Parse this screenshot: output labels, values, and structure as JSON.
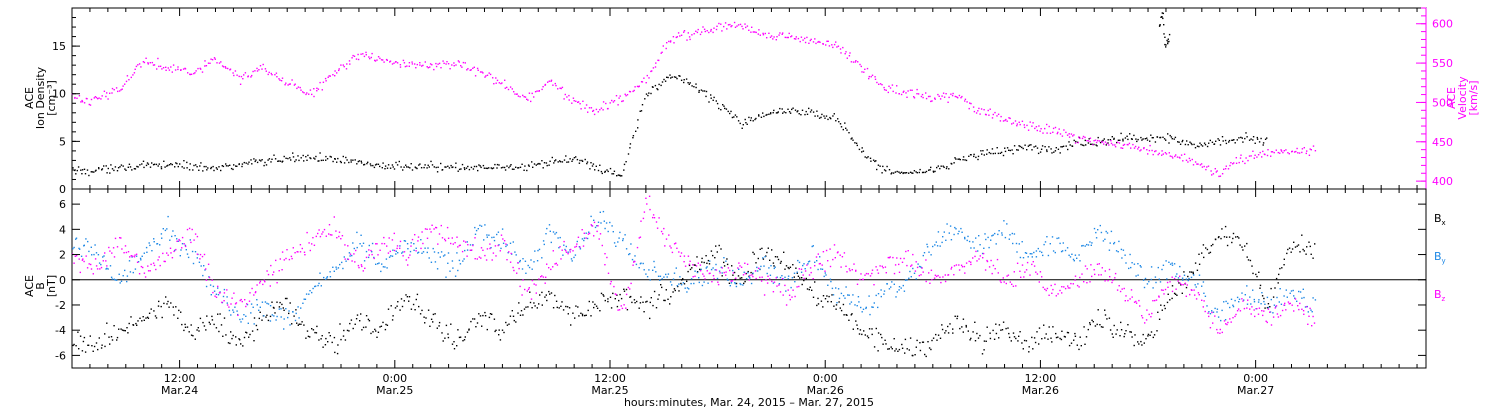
{
  "chart_data": [
    {
      "type": "scatter",
      "panel": "top",
      "ylabel_left_lines": [
        "ACE",
        "Ion Density",
        "[cm⁻³]"
      ],
      "ylabel_right_lines": [
        "ACE",
        "Velocity",
        "[km/s]"
      ],
      "ylim_left": [
        0,
        19
      ],
      "ylim_right": [
        390,
        620
      ],
      "yticks_left": [
        "0",
        "5",
        "10",
        "15"
      ],
      "yticks_right": [
        "400",
        "450",
        "500",
        "550",
        "600"
      ],
      "series": [
        {
          "axis": "left",
          "color": "#000000",
          "points": [
            [
              0,
              2
            ],
            [
              2,
              2
            ],
            [
              4,
              2.4
            ],
            [
              6,
              2.4
            ],
            [
              8,
              2.6
            ],
            [
              10,
              2.5
            ],
            [
              12,
              2.3
            ],
            [
              14,
              2.6
            ],
            [
              16,
              3
            ],
            [
              18,
              3.2
            ],
            [
              20,
              3.5
            ],
            [
              22,
              3
            ],
            [
              24,
              2.9
            ],
            [
              26,
              2.4
            ],
            [
              28,
              2.4
            ],
            [
              30,
              2.5
            ],
            [
              32,
              2.2
            ],
            [
              34,
              2.3
            ],
            [
              36,
              2.4
            ],
            [
              38,
              2.3
            ],
            [
              40,
              2.8
            ],
            [
              42,
              3.4
            ],
            [
              44,
              2.2
            ],
            [
              46,
              1.5
            ],
            [
              48,
              10
            ],
            [
              50,
              12
            ],
            [
              52,
              11
            ],
            [
              54,
              9
            ],
            [
              56,
              7
            ],
            [
              58,
              8
            ],
            [
              60,
              8.5
            ],
            [
              62,
              8
            ],
            [
              64,
              7.5
            ],
            [
              66,
              4
            ],
            [
              68,
              2
            ],
            [
              70,
              1.7
            ],
            [
              72,
              2
            ],
            [
              74,
              3
            ],
            [
              76,
              3.8
            ],
            [
              78,
              4
            ],
            [
              80,
              4.5
            ],
            [
              82,
              4
            ],
            [
              84,
              5
            ],
            [
              86,
              5
            ],
            [
              88,
              5.5
            ],
            [
              90,
              5.2
            ],
            [
              92,
              5.5
            ],
            [
              94,
              4.5
            ],
            [
              96,
              5
            ],
            [
              98,
              5.5
            ],
            [
              100,
              5
            ]
          ]
        },
        {
          "axis": "left",
          "color": "#000000",
          "points": [
            [
              91,
              17
            ],
            [
              91.3,
              18.5
            ],
            [
              91.5,
              15
            ],
            [
              91.8,
              16
            ]
          ]
        },
        {
          "axis": "right",
          "color": "#ff00ff",
          "points": [
            [
              0,
              505
            ],
            [
              2,
              505
            ],
            [
              4,
              520
            ],
            [
              6,
              555
            ],
            [
              8,
              545
            ],
            [
              10,
              540
            ],
            [
              12,
              555
            ],
            [
              14,
              530
            ],
            [
              16,
              545
            ],
            [
              18,
              525
            ],
            [
              20,
              510
            ],
            [
              22,
              540
            ],
            [
              24,
              560
            ],
            [
              26,
              555
            ],
            [
              28,
              550
            ],
            [
              30,
              545
            ],
            [
              32,
              550
            ],
            [
              34,
              540
            ],
            [
              36,
              525
            ],
            [
              38,
              505
            ],
            [
              40,
              530
            ],
            [
              42,
              500
            ],
            [
              44,
              490
            ],
            [
              46,
              505
            ],
            [
              48,
              530
            ],
            [
              50,
              580
            ],
            [
              52,
              590
            ],
            [
              54,
              595
            ],
            [
              56,
              600
            ],
            [
              58,
              585
            ],
            [
              60,
              585
            ],
            [
              62,
              580
            ],
            [
              64,
              575
            ],
            [
              66,
              545
            ],
            [
              68,
              520
            ],
            [
              70,
              515
            ],
            [
              72,
              505
            ],
            [
              74,
              510
            ],
            [
              76,
              490
            ],
            [
              78,
              480
            ],
            [
              80,
              470
            ],
            [
              82,
              465
            ],
            [
              84,
              455
            ],
            [
              86,
              450
            ],
            [
              88,
              445
            ],
            [
              90,
              440
            ],
            [
              92,
              435
            ],
            [
              94,
              425
            ],
            [
              96,
              410
            ],
            [
              98,
              430
            ],
            [
              100,
              435
            ],
            [
              102,
              440
            ],
            [
              104,
              440
            ]
          ]
        }
      ]
    },
    {
      "type": "scatter",
      "panel": "bottom",
      "ylabel_lines": [
        "ACE",
        "B",
        "[nT]"
      ],
      "ylim": [
        -7,
        7.2
      ],
      "yticks": [
        "-6",
        "-4",
        "-2",
        "0",
        "2",
        "4",
        "6"
      ],
      "legend": [
        "Bx",
        "By",
        "Bz"
      ],
      "legend_placement": "right",
      "series": [
        {
          "name": "Bx",
          "color": "#000000",
          "points": [
            [
              0,
              -5
            ],
            [
              2,
              -5.2
            ],
            [
              4,
              -4
            ],
            [
              6,
              -3
            ],
            [
              8,
              -2
            ],
            [
              10,
              -4
            ],
            [
              12,
              -3
            ],
            [
              14,
              -5
            ],
            [
              16,
              -3
            ],
            [
              18,
              -2
            ],
            [
              20,
              -4
            ],
            [
              22,
              -5
            ],
            [
              24,
              -3
            ],
            [
              26,
              -4
            ],
            [
              28,
              -1
            ],
            [
              30,
              -3
            ],
            [
              32,
              -5
            ],
            [
              34,
              -3
            ],
            [
              36,
              -4
            ],
            [
              38,
              -2
            ],
            [
              40,
              -1
            ],
            [
              42,
              -3
            ],
            [
              44,
              -2
            ],
            [
              46,
              -1
            ],
            [
              48,
              -2
            ],
            [
              50,
              -1
            ],
            [
              52,
              1
            ],
            [
              54,
              2
            ],
            [
              56,
              0
            ],
            [
              58,
              2
            ],
            [
              60,
              1
            ],
            [
              62,
              -1
            ],
            [
              64,
              -2
            ],
            [
              66,
              -4
            ],
            [
              68,
              -5
            ],
            [
              70,
              -5.5
            ],
            [
              72,
              -5
            ],
            [
              74,
              -3
            ],
            [
              76,
              -5
            ],
            [
              78,
              -4
            ],
            [
              80,
              -5
            ],
            [
              82,
              -4
            ],
            [
              84,
              -5
            ],
            [
              86,
              -3
            ],
            [
              88,
              -4
            ],
            [
              90,
              -5
            ],
            [
              92,
              -1
            ],
            [
              94,
              1
            ],
            [
              96,
              4
            ],
            [
              98,
              3
            ],
            [
              100,
              -2
            ],
            [
              102,
              3
            ],
            [
              104,
              2.5
            ]
          ]
        },
        {
          "name": "By",
          "color": "#1e88e5",
          "points": [
            [
              0,
              3
            ],
            [
              2,
              2
            ],
            [
              4,
              0
            ],
            [
              6,
              2
            ],
            [
              8,
              4
            ],
            [
              10,
              2
            ],
            [
              12,
              -1
            ],
            [
              14,
              -3
            ],
            [
              16,
              -2
            ],
            [
              18,
              -3
            ],
            [
              20,
              -1
            ],
            [
              22,
              1
            ],
            [
              24,
              3
            ],
            [
              26,
              1
            ],
            [
              28,
              3
            ],
            [
              30,
              2
            ],
            [
              32,
              1
            ],
            [
              34,
              4
            ],
            [
              36,
              3
            ],
            [
              38,
              1
            ],
            [
              40,
              4
            ],
            [
              42,
              2
            ],
            [
              44,
              5
            ],
            [
              46,
              3
            ],
            [
              48,
              1
            ],
            [
              50,
              0
            ],
            [
              52,
              0
            ],
            [
              54,
              1
            ],
            [
              56,
              0
            ],
            [
              58,
              1
            ],
            [
              60,
              0
            ],
            [
              62,
              2
            ],
            [
              64,
              -1
            ],
            [
              66,
              -2
            ],
            [
              68,
              -1
            ],
            [
              70,
              0
            ],
            [
              72,
              3
            ],
            [
              74,
              4
            ],
            [
              76,
              3
            ],
            [
              78,
              4
            ],
            [
              80,
              2
            ],
            [
              82,
              3
            ],
            [
              84,
              2
            ],
            [
              86,
              4
            ],
            [
              88,
              2
            ],
            [
              90,
              0
            ],
            [
              92,
              1
            ],
            [
              94,
              0
            ],
            [
              96,
              -3
            ],
            [
              98,
              -1
            ],
            [
              100,
              -2
            ],
            [
              102,
              -1
            ],
            [
              104,
              -2
            ]
          ]
        },
        {
          "name": "Bz",
          "color": "#ff00ff",
          "points": [
            [
              0,
              2
            ],
            [
              2,
              1
            ],
            [
              4,
              3
            ],
            [
              6,
              1
            ],
            [
              8,
              2
            ],
            [
              10,
              4
            ],
            [
              12,
              -1
            ],
            [
              14,
              -2
            ],
            [
              16,
              0
            ],
            [
              18,
              2
            ],
            [
              20,
              3
            ],
            [
              22,
              4
            ],
            [
              24,
              1
            ],
            [
              26,
              3
            ],
            [
              28,
              2
            ],
            [
              30,
              4
            ],
            [
              32,
              3
            ],
            [
              34,
              2
            ],
            [
              36,
              3
            ],
            [
              38,
              -1
            ],
            [
              40,
              1
            ],
            [
              42,
              3
            ],
            [
              44,
              4
            ],
            [
              46,
              -3
            ],
            [
              48,
              6
            ],
            [
              50,
              3
            ],
            [
              52,
              1
            ],
            [
              54,
              0
            ],
            [
              56,
              1
            ],
            [
              58,
              0
            ],
            [
              60,
              -1
            ],
            [
              62,
              1
            ],
            [
              64,
              2
            ],
            [
              66,
              0
            ],
            [
              68,
              1
            ],
            [
              70,
              2
            ],
            [
              72,
              0
            ],
            [
              74,
              1
            ],
            [
              76,
              2
            ],
            [
              78,
              0
            ],
            [
              80,
              1
            ],
            [
              82,
              -1
            ],
            [
              84,
              0
            ],
            [
              86,
              1
            ],
            [
              88,
              -1
            ],
            [
              90,
              -3
            ],
            [
              92,
              0
            ],
            [
              94,
              -1
            ],
            [
              96,
              -4
            ],
            [
              98,
              -2
            ],
            [
              100,
              -3
            ],
            [
              102,
              -2
            ],
            [
              104,
              -3
            ]
          ]
        }
      ]
    }
  ],
  "time_axis": {
    "ticks": [
      {
        "hour": 12,
        "time": "12:00",
        "date": "Mar.24"
      },
      {
        "hour": 24,
        "time": "0:00",
        "date": "Mar.25"
      },
      {
        "hour": 36,
        "time": "12:00",
        "date": "Mar.25"
      },
      {
        "hour": 48,
        "time": "0:00",
        "date": "Mar.26"
      },
      {
        "hour": 60,
        "time": "12:00",
        "date": "Mar.26"
      },
      {
        "hour": 72,
        "time": "0:00",
        "date": "Mar.27"
      }
    ],
    "xlim_hours": [
      6,
      81.5
    ],
    "data_hour_start": 6,
    "data_hour_end": 72.6,
    "xlabel": "hours:minutes, Mar. 24, 2015 – Mar. 27, 2015"
  }
}
